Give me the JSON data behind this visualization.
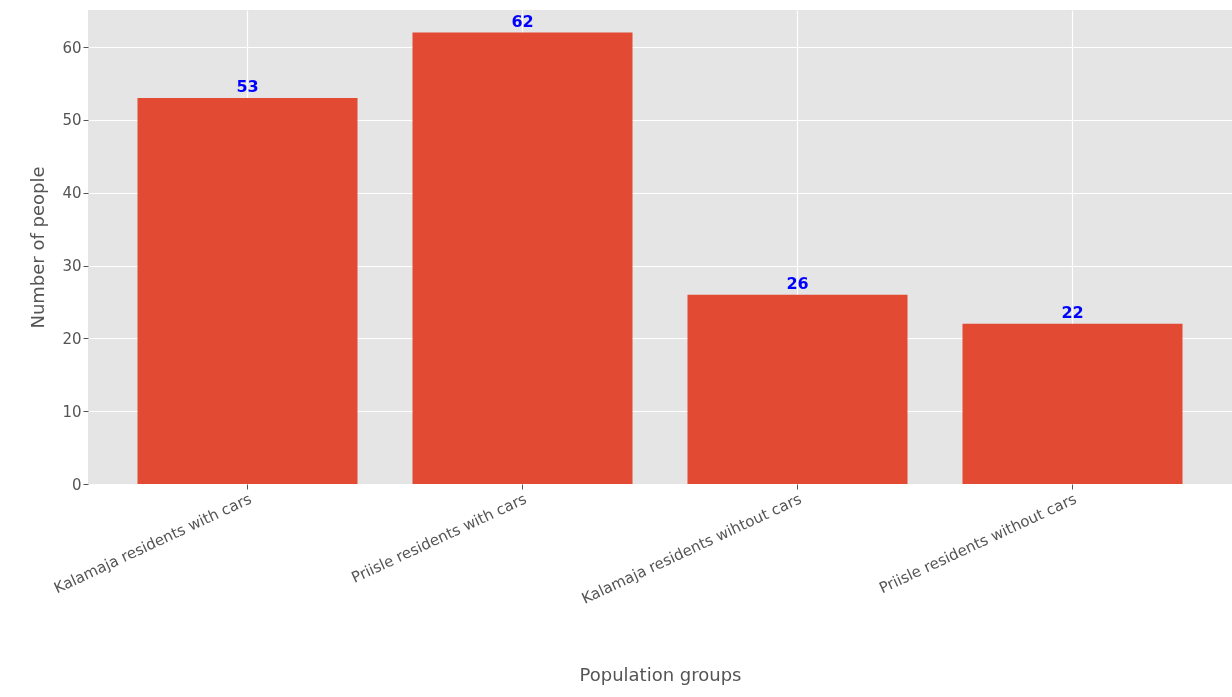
{
  "chart_data": {
    "type": "bar",
    "xlabel": "Population groups",
    "ylabel": "Number of people",
    "categories": [
      "Kalamaja residents with cars",
      "Priisle residents with cars",
      "Kalamaja residents wihtout cars",
      "Priisle residents without cars"
    ],
    "values": [
      53,
      62,
      26,
      22
    ],
    "color": "#e24a33",
    "ylim": [
      0,
      65.1
    ],
    "yticks": [
      0,
      10,
      20,
      30,
      40,
      50,
      60
    ],
    "grid": true,
    "data_labels": true
  }
}
